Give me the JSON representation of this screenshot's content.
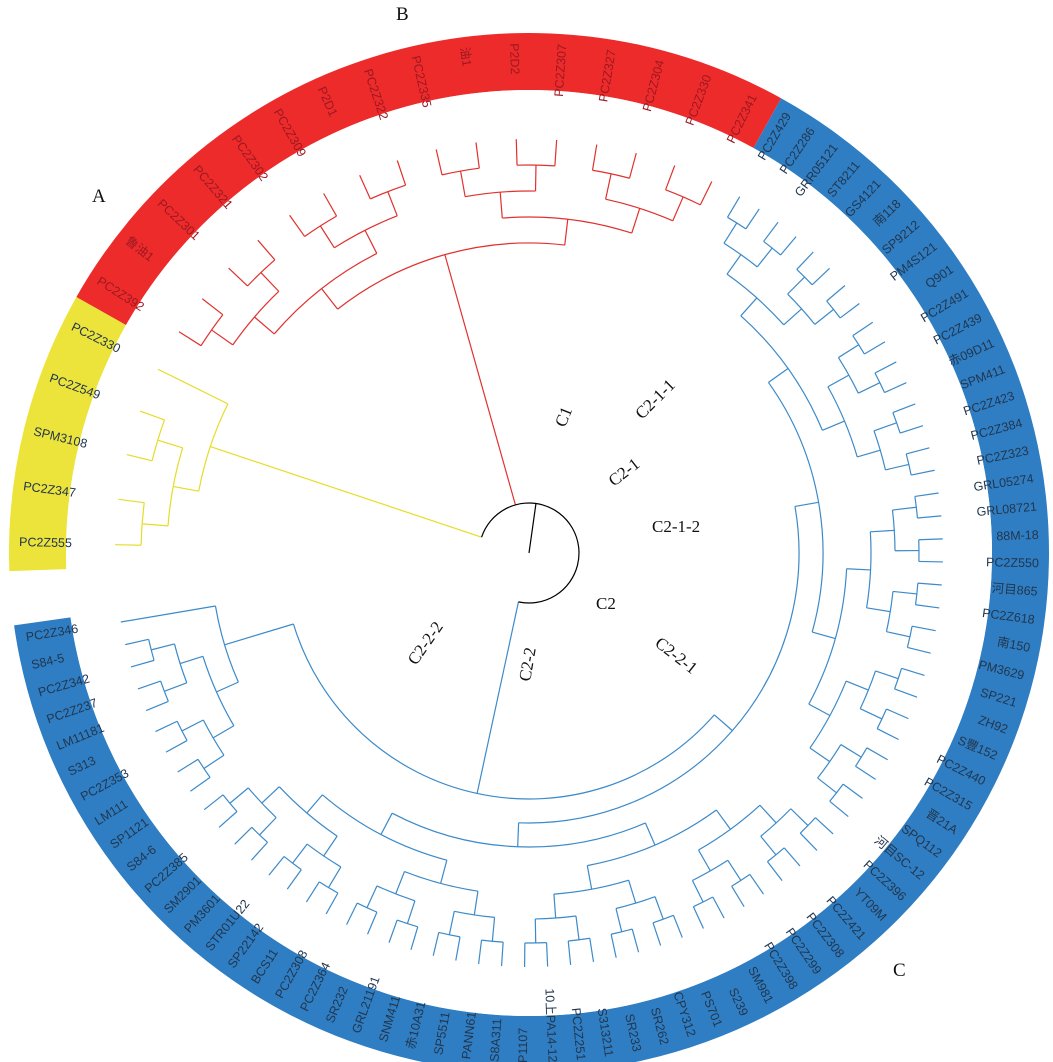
{
  "colors": {
    "clade_a_band": "#ECE43A",
    "clade_a_line": "#E6DC28",
    "clade_b_band": "#EE2B2B",
    "clade_b_line": "#E0312E",
    "clade_c_band": "#2F7EC3",
    "clade_c_line": "#3C8AC9",
    "clade_c_label": "#22364E",
    "clade_b_label": "#9C1822",
    "clade_a_label": "#22364E",
    "root_arc": "#000000"
  },
  "clade_letters": {
    "a": "A",
    "b": "B",
    "c": "C"
  },
  "node_labels": {
    "c1": "C1",
    "c2": "C2",
    "c2_1": "C2-1",
    "c2_1_1": "C2-1-1",
    "c2_1_2": "C2-1-2",
    "c2_2": "C2-2",
    "c2_2_1": "C2-2-1",
    "c2_2_2": "C2-2-2"
  },
  "clade_a": [
    "PC2Z555",
    "PC2Z347",
    "SPM3108",
    "PC2Z549",
    "PC2Z330"
  ],
  "clade_b": [
    "PC2Z392",
    "鲁油1",
    "PC2Z301",
    "PC2Z321",
    "PC2Z302",
    "PC2Z309",
    "P2D1",
    "PC2Z322",
    "PC2Z335",
    "油1",
    "P2D2",
    "PC2Z307",
    "PC2Z327",
    "PC2Z304",
    "PC2Z330",
    "PC2Z341"
  ],
  "clade_c": [
    "PC2Z429",
    "PC2Z286",
    "GRR05121",
    "ST8211",
    "GS4121",
    "南118",
    "SP9212",
    "PM4S121",
    "Q901",
    "PC2Z491",
    "PC2Z439",
    "赤09D11",
    "SPM411",
    "PC2Z423",
    "PC2Z384",
    "PC2Z323",
    "GRL05274",
    "GRL08721",
    "88M-18",
    "PC2Z550",
    "河目865",
    "PC2Z618",
    "南150",
    "PM3629",
    "SP221",
    "ZH92",
    "S豐152",
    "PC2Z440",
    "PC2Z315",
    "晋21A",
    "SPQ112",
    "河目SC-12",
    "PC2Z396",
    "YT09M",
    "PC2Z421",
    "PC2Z308",
    "PC2Z299",
    "PC2Z398",
    "SM981",
    "S239",
    "PS701",
    "CPY312",
    "SR262",
    "SR233",
    "S313211",
    "PC2Z251",
    "10上PA14-12",
    "P1107",
    "S8A311",
    "PANN61",
    "SP5511",
    "赤10A31",
    "SNM411",
    "GRL21191",
    "SR232",
    "PC2Z364",
    "PC2Z308",
    "BCS11",
    "SP22142",
    "STR01U22",
    "PM3601",
    "SM2901",
    "PC2Z385",
    "S84-6",
    "SP1121",
    "LM111",
    "PC2Z353",
    "S313",
    "LM11181",
    "PC2Z237",
    "PC2Z342",
    "S84-5",
    "PC2Z346"
  ]
}
